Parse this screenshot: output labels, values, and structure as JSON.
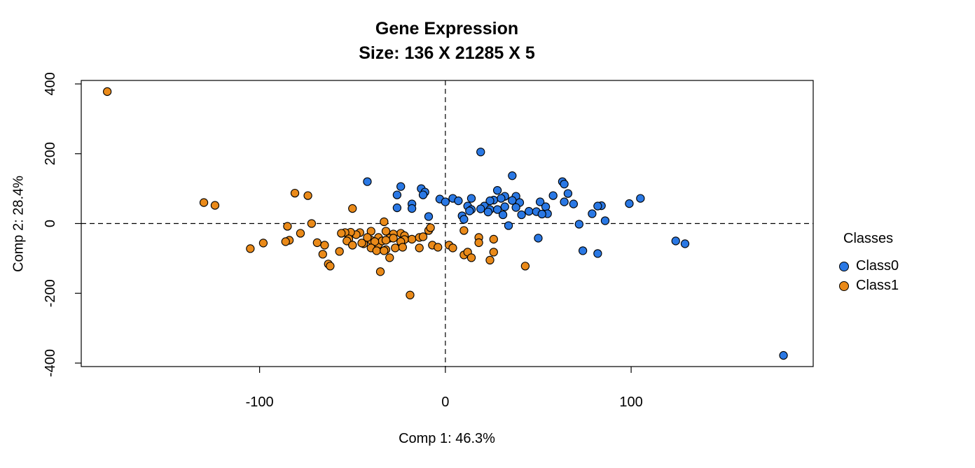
{
  "chart_data": {
    "type": "scatter",
    "title": "Gene Expression",
    "subtitle": "Size: 136 X 21285 X 5",
    "xlabel": "Comp 1: 46.3%",
    "ylabel": "Comp 2: 28.4%",
    "xlim": [
      -196,
      198
    ],
    "ylim": [
      -410,
      410
    ],
    "xticks": [
      -100,
      0,
      100
    ],
    "yticks": [
      -400,
      -200,
      0,
      200,
      400
    ],
    "reference_lines": {
      "x": 0,
      "y": 0,
      "style": "dashed"
    },
    "grid": false,
    "legend": {
      "title": "Classes",
      "position": "right"
    },
    "series": [
      {
        "name": "Class0",
        "color": "#2a78e4",
        "points": [
          [
            19,
            205
          ],
          [
            36,
            137
          ],
          [
            -42,
            120
          ],
          [
            63,
            120
          ],
          [
            64,
            113
          ],
          [
            -24,
            106
          ],
          [
            -13,
            100
          ],
          [
            -11,
            90
          ],
          [
            -12,
            82
          ],
          [
            -26,
            82
          ],
          [
            66,
            86
          ],
          [
            28,
            95
          ],
          [
            58,
            80
          ],
          [
            38,
            78
          ],
          [
            32,
            78
          ],
          [
            105,
            72
          ],
          [
            4,
            72
          ],
          [
            14,
            72
          ],
          [
            30,
            72
          ],
          [
            -3,
            70
          ],
          [
            36,
            66
          ],
          [
            26,
            67
          ],
          [
            24,
            65
          ],
          [
            7,
            65
          ],
          [
            40,
            60
          ],
          [
            0,
            62
          ],
          [
            64,
            62
          ],
          [
            51,
            62
          ],
          [
            69,
            56
          ],
          [
            99,
            57
          ],
          [
            -18,
            56
          ],
          [
            84,
            51
          ],
          [
            82,
            50
          ],
          [
            12,
            50
          ],
          [
            21,
            50
          ],
          [
            32,
            48
          ],
          [
            54,
            48
          ],
          [
            38,
            46
          ],
          [
            -26,
            45
          ],
          [
            -18,
            43
          ],
          [
            19,
            42
          ],
          [
            24,
            40
          ],
          [
            28,
            40
          ],
          [
            14,
            40
          ],
          [
            45,
            35
          ],
          [
            49,
            34
          ],
          [
            23,
            33
          ],
          [
            13,
            36
          ],
          [
            55,
            28
          ],
          [
            52,
            27
          ],
          [
            79,
            28
          ],
          [
            41,
            25
          ],
          [
            31,
            25
          ],
          [
            -9,
            20
          ],
          [
            9,
            22
          ],
          [
            86,
            8
          ],
          [
            10,
            12
          ],
          [
            34,
            -6
          ],
          [
            72,
            -2
          ],
          [
            50,
            -42
          ],
          [
            124,
            -50
          ],
          [
            129,
            -58
          ],
          [
            74,
            -78
          ],
          [
            82,
            -86
          ],
          [
            182,
            -378
          ]
        ]
      },
      {
        "name": "Class1",
        "color": "#ea8a19",
        "points": [
          [
            -182,
            378
          ],
          [
            -130,
            60
          ],
          [
            -124,
            52
          ],
          [
            -81,
            87
          ],
          [
            -74,
            80
          ],
          [
            -50,
            43
          ],
          [
            -72,
            0
          ],
          [
            -85,
            -8
          ],
          [
            -33,
            5
          ],
          [
            -32,
            -22
          ],
          [
            -40,
            -22
          ],
          [
            -46,
            -26
          ],
          [
            -48,
            -32
          ],
          [
            -51,
            -25
          ],
          [
            -54,
            -26
          ],
          [
            -56,
            -28
          ],
          [
            -78,
            -28
          ],
          [
            -9,
            -20
          ],
          [
            -8,
            -12
          ],
          [
            10,
            -20
          ],
          [
            -24,
            -28
          ],
          [
            -22,
            -35
          ],
          [
            -28,
            -30
          ],
          [
            -30,
            -42
          ],
          [
            -36,
            -40
          ],
          [
            -40,
            -48
          ],
          [
            -44,
            -58
          ],
          [
            -52,
            -44
          ],
          [
            -53,
            -50
          ],
          [
            -36,
            -60
          ],
          [
            -34,
            -50
          ],
          [
            -18,
            -45
          ],
          [
            -14,
            -40
          ],
          [
            -12,
            -38
          ],
          [
            -22,
            -46
          ],
          [
            -24,
            -52
          ],
          [
            -28,
            -42
          ],
          [
            -32,
            -48
          ],
          [
            -38,
            -52
          ],
          [
            -42,
            -40
          ],
          [
            -84,
            -48
          ],
          [
            -86,
            -52
          ],
          [
            -69,
            -55
          ],
          [
            -98,
            -56
          ],
          [
            -105,
            -72
          ],
          [
            -65,
            -62
          ],
          [
            -57,
            -80
          ],
          [
            -50,
            -62
          ],
          [
            -40,
            -70
          ],
          [
            -37,
            -78
          ],
          [
            -32,
            -75
          ],
          [
            -27,
            -70
          ],
          [
            -23,
            -68
          ],
          [
            -14,
            -70
          ],
          [
            -7,
            -62
          ],
          [
            -4,
            -68
          ],
          [
            2,
            -62
          ],
          [
            4,
            -70
          ],
          [
            18,
            -40
          ],
          [
            18,
            -55
          ],
          [
            26,
            -45
          ],
          [
            10,
            -90
          ],
          [
            12,
            -82
          ],
          [
            14,
            -98
          ],
          [
            26,
            -82
          ],
          [
            24,
            -105
          ],
          [
            43,
            -122
          ],
          [
            -63,
            -116
          ],
          [
            -62,
            -122
          ],
          [
            -66,
            -88
          ],
          [
            -30,
            -98
          ],
          [
            -35,
            -138
          ],
          [
            -19,
            -205
          ],
          [
            -50,
            -62
          ],
          [
            -45,
            -56
          ],
          [
            -33,
            -78
          ]
        ]
      }
    ]
  }
}
